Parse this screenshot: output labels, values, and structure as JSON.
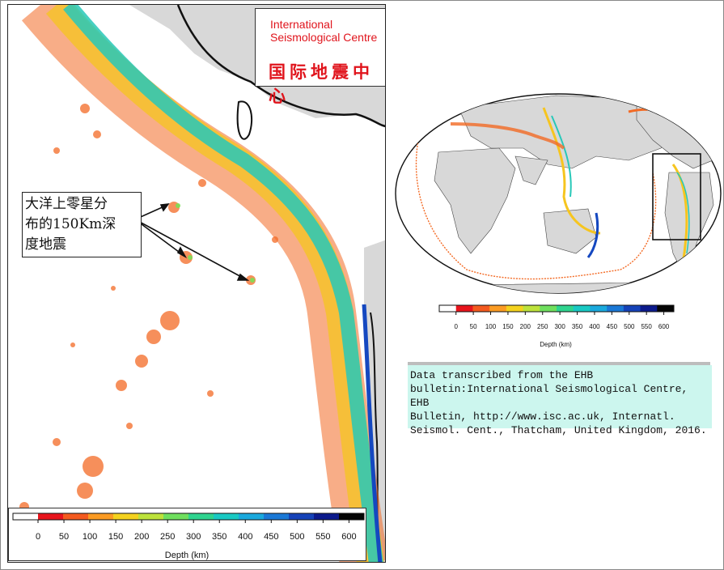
{
  "logo": {
    "line1": "International",
    "line2": "Seismological Centre",
    "chinese": "国际地震中心"
  },
  "callout": {
    "line1": "大洋上零星分",
    "line2": "布的150Km深",
    "line3": "度地震"
  },
  "depth_scale": {
    "label": "Depth (km)",
    "ticks": [
      "0",
      "50",
      "100",
      "150",
      "200",
      "250",
      "300",
      "350",
      "400",
      "450",
      "500",
      "550",
      "600"
    ],
    "colors": [
      "#ffffff",
      "#e8141c",
      "#f45a1f",
      "#fb9b23",
      "#f4d21e",
      "#bde23b",
      "#6fdf5e",
      "#2fd48f",
      "#19c9c3",
      "#1aa9dd",
      "#1a78d6",
      "#1542b8",
      "#0c1a8c",
      "#050505"
    ]
  },
  "citation": {
    "text": "Data transcribed from the EHB\nbulletin:International Seismological Centre, EHB\nBulletin, http://www.isc.ac.uk, Internatl.\nSeismol. Cent., Thatcham, United Kingdom, 2016."
  },
  "map_colors": {
    "land": "#d8d8d8",
    "coast": "#111111",
    "shallow": "#f36a24",
    "medium": "#f6c51f",
    "deep": "#27c8b8",
    "very_deep": "#1548c0"
  }
}
